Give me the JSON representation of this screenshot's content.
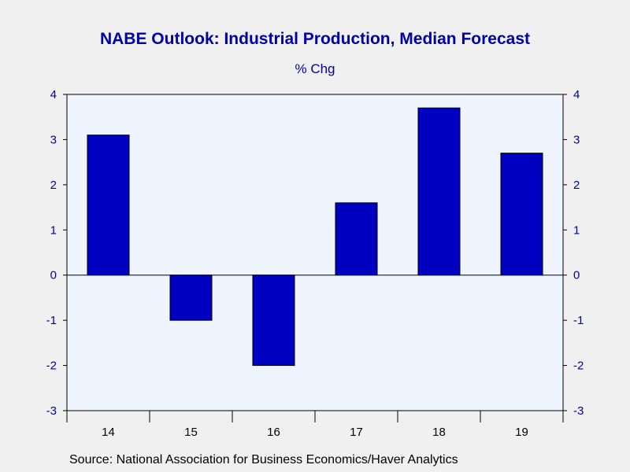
{
  "header": {
    "title": "NABE Outlook: Industrial Production, Median Forecast",
    "subtitle": "% Chg"
  },
  "footer": {
    "source": "Source:  National Association for Business Economics/Haver Analytics"
  },
  "colors": {
    "bar_fill": "#0000c0",
    "plot_background": "#eef5ff",
    "axis_text": "#0000a8"
  },
  "chart_data": {
    "type": "bar",
    "title": "NABE Outlook: Industrial Production, Median Forecast",
    "subtitle": "% Chg",
    "categories": [
      "14",
      "15",
      "16",
      "17",
      "18",
      "19"
    ],
    "values": [
      3.1,
      -1.0,
      -2.0,
      1.6,
      3.7,
      2.7
    ],
    "ylim": [
      -3,
      4
    ],
    "yticks": [
      4,
      3,
      2,
      1,
      0,
      -1,
      -2,
      -3
    ],
    "yaxis_sides": "both",
    "grid": false,
    "zero_line": true,
    "legend": "none"
  }
}
